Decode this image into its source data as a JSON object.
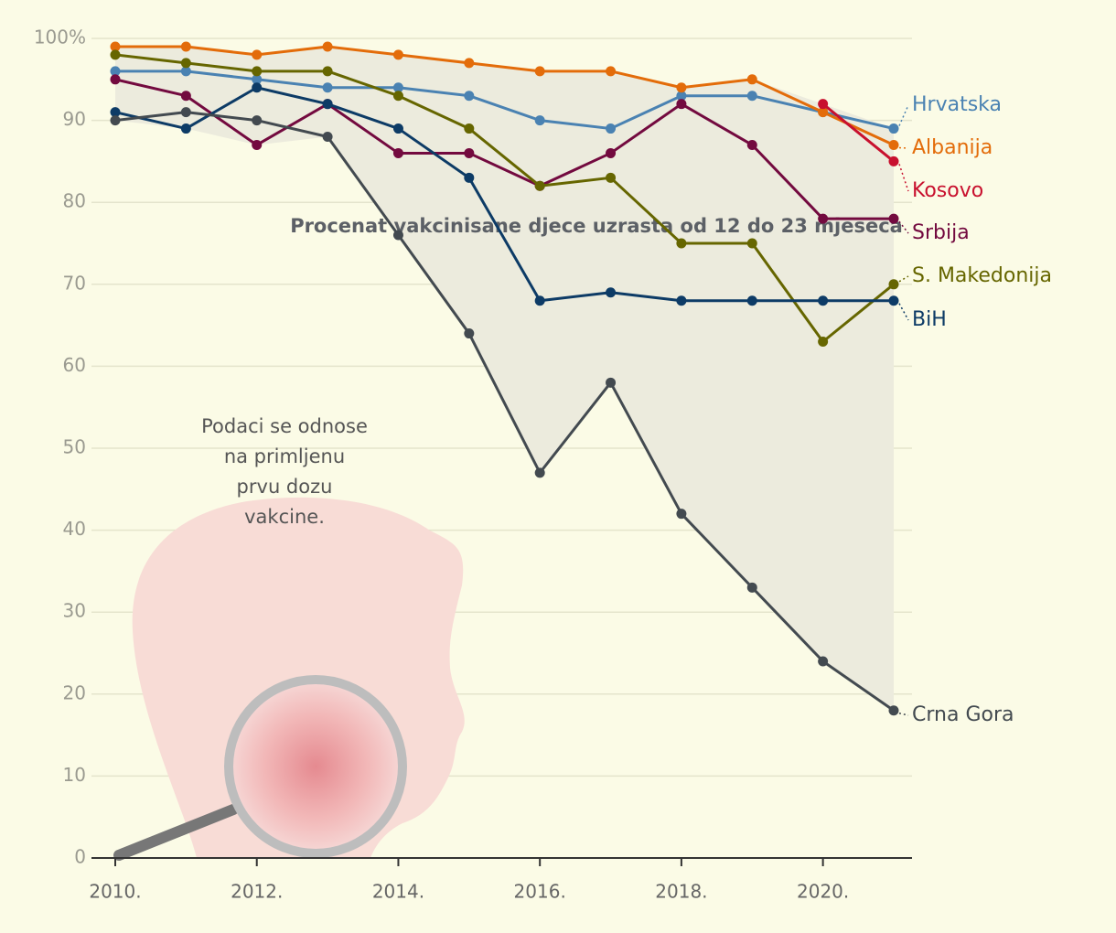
{
  "chart_data": {
    "type": "line",
    "title": "Procenat vakcinisane djece uzrasta od 12 do 23 mjeseca",
    "annotation": [
      "Podaci se odnose",
      "na primljenu",
      "prvu dozu",
      "vakcine."
    ],
    "x": [
      2010,
      2011,
      2012,
      2013,
      2014,
      2015,
      2016,
      2017,
      2018,
      2019,
      2020,
      2021
    ],
    "xlim": [
      2010,
      2021
    ],
    "xticks": [
      {
        "value": 2010,
        "label": "2010."
      },
      {
        "value": 2012,
        "label": "2012."
      },
      {
        "value": 2014,
        "label": "2014."
      },
      {
        "value": 2016,
        "label": "2016."
      },
      {
        "value": 2018,
        "label": "2018."
      },
      {
        "value": 2020,
        "label": "2020."
      }
    ],
    "ylim": [
      0,
      100
    ],
    "yticks": [
      0,
      10,
      20,
      30,
      40,
      50,
      60,
      70,
      80,
      90,
      {
        "value": 100,
        "label": "100%"
      }
    ],
    "grid": true,
    "series": [
      {
        "name": "Hrvatska",
        "color": "#4a82b2",
        "values": [
          96,
          96,
          95,
          94,
          94,
          93,
          90,
          89,
          93,
          93,
          91,
          89
        ]
      },
      {
        "name": "Albanija",
        "color": "#e36c0a",
        "values": [
          99,
          99,
          98,
          99,
          98,
          97,
          96,
          96,
          94,
          95,
          91,
          87
        ]
      },
      {
        "name": "Kosovo",
        "color": "#c8102e",
        "values": [
          null,
          null,
          null,
          null,
          null,
          null,
          null,
          null,
          null,
          null,
          92,
          85
        ]
      },
      {
        "name": "Srbija",
        "color": "#730a3f",
        "values": [
          95,
          93,
          87,
          92,
          86,
          86,
          82,
          86,
          92,
          87,
          78,
          78
        ]
      },
      {
        "name": "S. Makedonija",
        "color": "#666600",
        "values": [
          98,
          97,
          96,
          96,
          93,
          89,
          82,
          83,
          75,
          75,
          63,
          70
        ]
      },
      {
        "name": "BiH",
        "color": "#0d3b66",
        "values": [
          91,
          89,
          94,
          92,
          89,
          83,
          68,
          69,
          68,
          68,
          68,
          68
        ]
      },
      {
        "name": "Crna Gora",
        "color": "#434a50",
        "values": [
          90,
          91,
          90,
          88,
          76,
          64,
          47,
          58,
          42,
          33,
          24,
          18
        ]
      }
    ]
  }
}
